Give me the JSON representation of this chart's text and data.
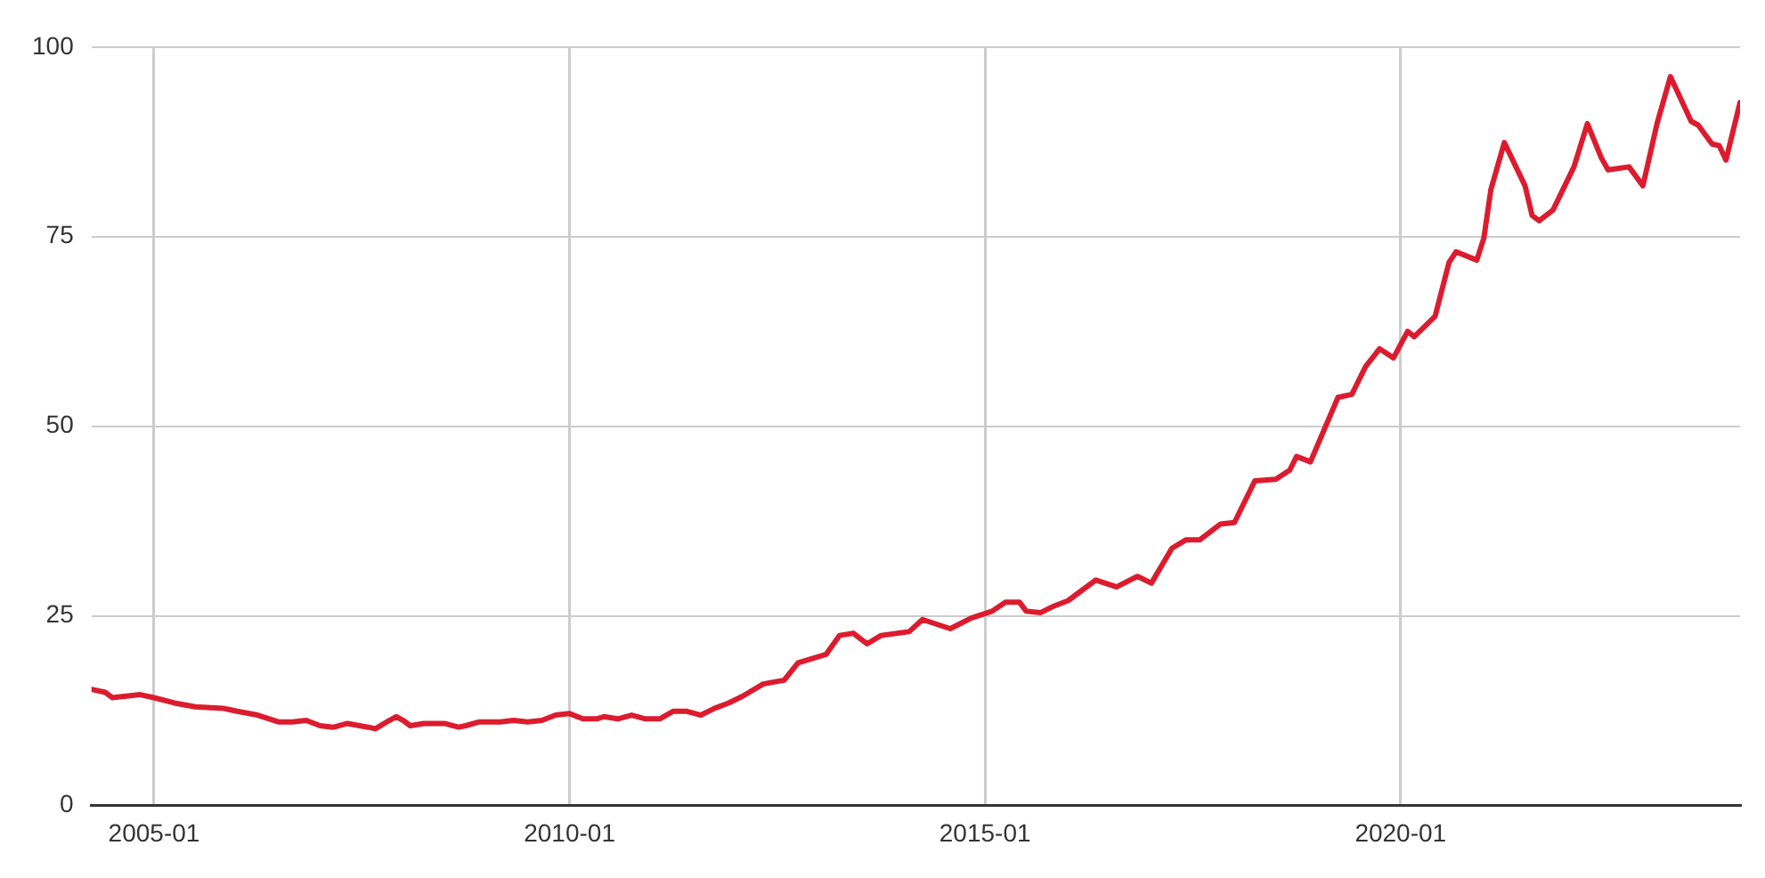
{
  "chart_data": {
    "type": "line",
    "x": [
      "2004-04",
      "2004-06",
      "2004-07",
      "2004-09",
      "2004-11",
      "2005-01",
      "2005-04",
      "2005-07",
      "2005-11",
      "2006-01",
      "2006-04",
      "2006-07",
      "2006-09",
      "2006-11",
      "2007-01",
      "2007-03",
      "2007-05",
      "2007-08",
      "2007-09",
      "2007-11",
      "2007-12",
      "2008-01",
      "2008-02",
      "2008-04",
      "2008-07",
      "2008-09",
      "2008-10",
      "2008-12",
      "2009-02",
      "2009-03",
      "2009-05",
      "2009-07",
      "2009-09",
      "2009-11",
      "2010-01",
      "2010-03",
      "2010-05",
      "2010-06",
      "2010-08",
      "2010-10",
      "2010-12",
      "2011-02",
      "2011-04",
      "2011-06",
      "2011-08",
      "2011-10",
      "2011-12",
      "2012-02",
      "2012-05",
      "2012-08",
      "2012-10",
      "2013-02",
      "2013-04",
      "2013-06",
      "2013-08",
      "2013-10",
      "2014-02",
      "2014-04",
      "2014-08",
      "2014-11",
      "2015-02",
      "2015-04",
      "2015-06",
      "2015-07",
      "2015-09",
      "2015-11",
      "2016-01",
      "2016-05",
      "2016-08",
      "2016-11",
      "2017-01",
      "2017-04",
      "2017-06",
      "2017-08",
      "2017-11",
      "2018-01",
      "2018-04",
      "2018-07",
      "2018-09",
      "2018-10",
      "2018-12",
      "2019-04",
      "2019-06",
      "2019-08",
      "2019-10",
      "2019-12",
      "2020-02",
      "2020-03",
      "2020-06",
      "2020-08",
      "2020-09",
      "2020-12",
      "2021-01",
      "2021-02",
      "2021-04",
      "2021-07",
      "2021-08",
      "2021-09",
      "2021-11",
      "2022-02",
      "2022-04",
      "2022-06",
      "2022-07",
      "2022-10",
      "2022-12",
      "2023-02",
      "2023-04",
      "2023-07",
      "2023-08",
      "2023-10",
      "2023-11",
      "2023-12",
      "2024-02"
    ],
    "series": [
      {
        "color": "#dc1c2e",
        "values": [
          15.3,
          14.9,
          14.2,
          14.4,
          14.6,
          14.2,
          13.5,
          13.0,
          12.8,
          12.4,
          11.9,
          11.0,
          11.0,
          11.2,
          10.5,
          10.3,
          10.8,
          10.3,
          10.1,
          11.2,
          11.7,
          11.2,
          10.5,
          10.8,
          10.8,
          10.3,
          10.5,
          11.0,
          11.0,
          11.0,
          11.2,
          11.0,
          11.2,
          11.9,
          12.1,
          11.4,
          11.4,
          11.7,
          11.4,
          11.9,
          11.4,
          11.4,
          12.4,
          12.4,
          11.9,
          12.8,
          13.5,
          14.4,
          16.0,
          16.5,
          18.8,
          19.9,
          22.4,
          22.7,
          21.3,
          22.4,
          22.9,
          24.5,
          23.3,
          24.7,
          25.6,
          26.8,
          26.8,
          25.6,
          25.4,
          26.3,
          27.0,
          29.7,
          28.8,
          30.2,
          29.3,
          33.9,
          35.0,
          35.0,
          37.1,
          37.3,
          42.8,
          43.0,
          44.2,
          46.0,
          45.3,
          53.8,
          54.2,
          57.9,
          60.2,
          59.0,
          62.5,
          61.8,
          64.5,
          71.6,
          73.0,
          71.9,
          74.8,
          81.2,
          87.4,
          81.7,
          77.8,
          77.1,
          78.5,
          84.2,
          89.9,
          85.4,
          83.8,
          84.2,
          81.7,
          89.9,
          96.1,
          90.2,
          89.7,
          87.2,
          87.0,
          85.1,
          92.7
        ]
      }
    ],
    "xlim": [
      "2004-04",
      "2024-02"
    ],
    "xticks": [
      "2005-01",
      "2010-01",
      "2015-01",
      "2020-01"
    ],
    "ylim": [
      0,
      100
    ],
    "yticks": [
      0,
      25,
      50,
      75,
      100
    ],
    "grid": true,
    "marker": "none",
    "line_style": "solid"
  }
}
